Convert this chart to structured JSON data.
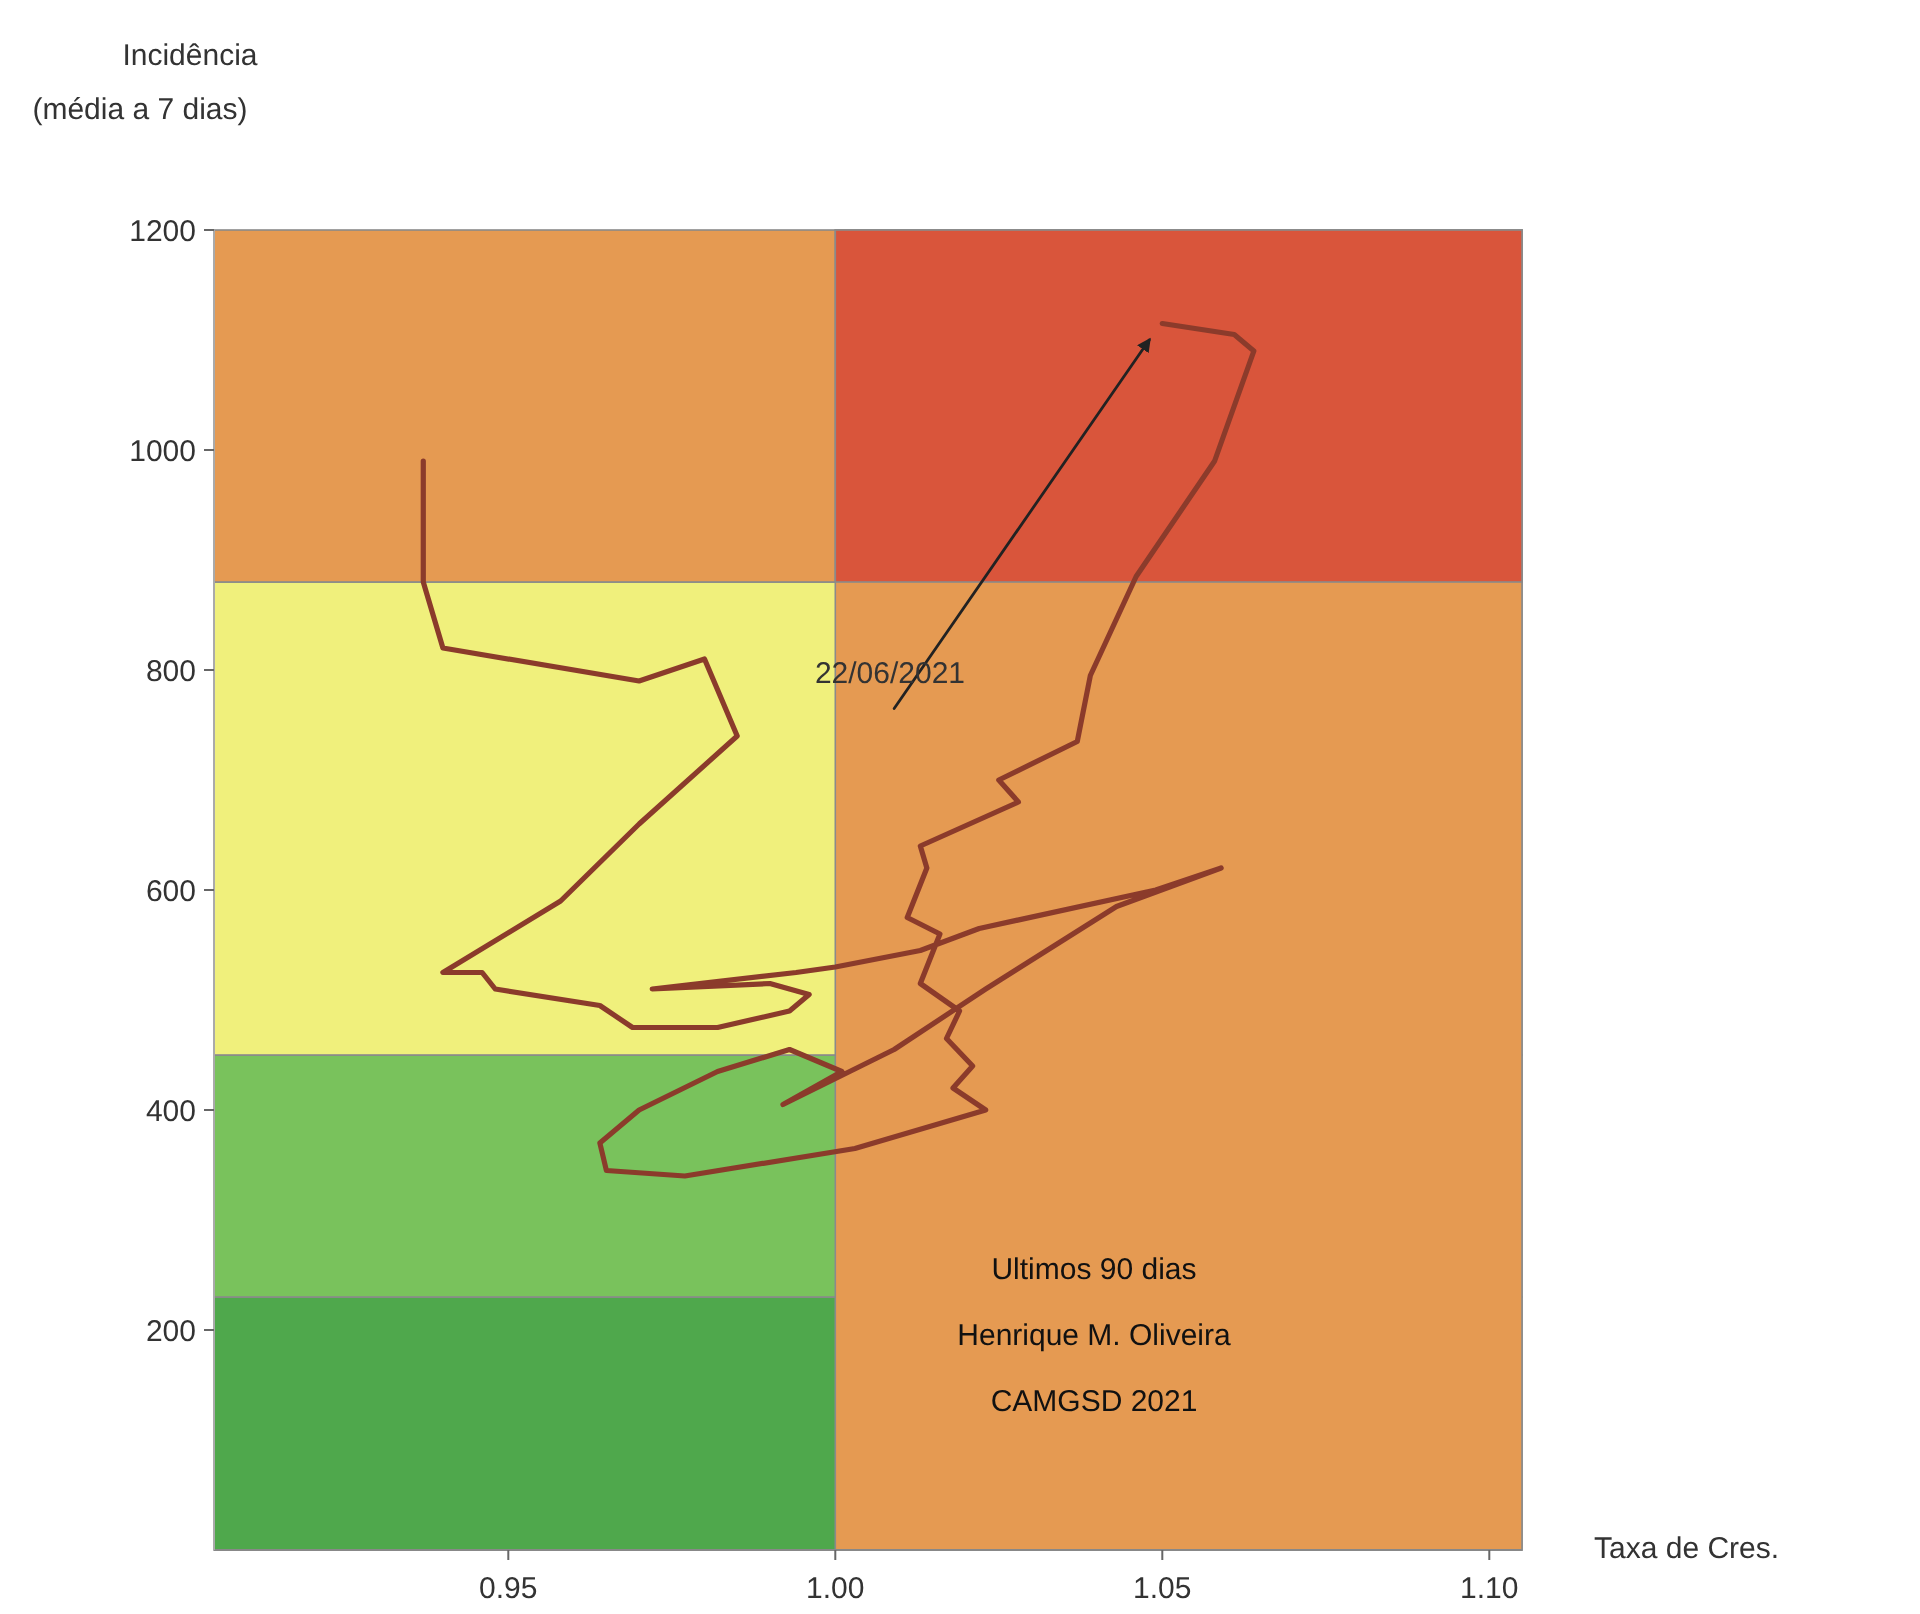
{
  "chart_data": {
    "type": "line",
    "xlabel": "Taxa de Cres.",
    "ylabel": "Incidência\n(média a 7 dias)",
    "xlim": [
      0.905,
      1.105
    ],
    "ylim": [
      0,
      1200
    ],
    "xticks": [
      0.95,
      {
        "value": 1,
        "label": "1.00"
      },
      1.05,
      {
        "value": 1.1,
        "label": "1.10"
      }
    ],
    "yticks": [
      200,
      400,
      600,
      800,
      1000,
      1200
    ],
    "bands": [
      {
        "axis": "y",
        "from": 0,
        "to": 230,
        "color": "#4fa84c"
      },
      {
        "axis": "y",
        "from": 230,
        "to": 450,
        "color": "#79c25c"
      },
      {
        "axis": "y",
        "from": 450,
        "to": 880,
        "color": "#f0f07c"
      },
      {
        "axis": "y",
        "from": 880,
        "to": 1200,
        "color": "#e59a52"
      },
      {
        "axis": "x",
        "from": 1,
        "to": 1.105,
        "color": "#e59a52"
      },
      {
        "axis": "y",
        "from": 880,
        "to": 1200,
        "color": "#d9553b"
      }
    ],
    "series": [
      {
        "color": "#8b3b2b",
        "x": [
          0.937,
          0.937,
          0.94,
          0.97,
          0.98,
          0.985,
          0.97,
          0.958,
          0.94,
          0.946,
          0.948,
          0.964,
          0.969,
          0.982,
          0.993,
          0.996,
          0.99,
          0.972,
          0.994,
          1.0,
          1.013,
          1.022,
          1.049,
          1.059,
          1.043,
          1.023,
          1.009,
          0.992,
          1.001,
          0.993,
          0.982,
          0.97,
          0.964,
          0.965,
          0.977,
          1.003,
          1.023,
          1.018,
          1.021,
          1.017,
          1.019,
          1.013,
          1.016,
          1.011,
          1.014,
          1.013,
          1.028,
          1.025,
          1.037,
          1.039,
          1.046,
          1.058,
          1.064,
          1.061,
          1.05
        ],
        "values": [
          990,
          880,
          820,
          790,
          810,
          740,
          660,
          590,
          525,
          525,
          510,
          495,
          475,
          475,
          490,
          505,
          515,
          510,
          525,
          530,
          545,
          565,
          600,
          620,
          585,
          510,
          455,
          405,
          435,
          455,
          435,
          400,
          370,
          345,
          340,
          365,
          400,
          420,
          440,
          465,
          490,
          515,
          560,
          575,
          620,
          640,
          680,
          700,
          735,
          795,
          885,
          990,
          1090,
          1105,
          1115
        ]
      },
      {
        "color": "#222222",
        "x": [
          1.009,
          1.048
        ],
        "values": [
          765,
          1100
        ]
      }
    ],
    "annotations": [
      "22/06/2021",
      "Ultimos 90 dias",
      "Henrique M. Oliveira",
      "CAMGSD 2021"
    ]
  }
}
